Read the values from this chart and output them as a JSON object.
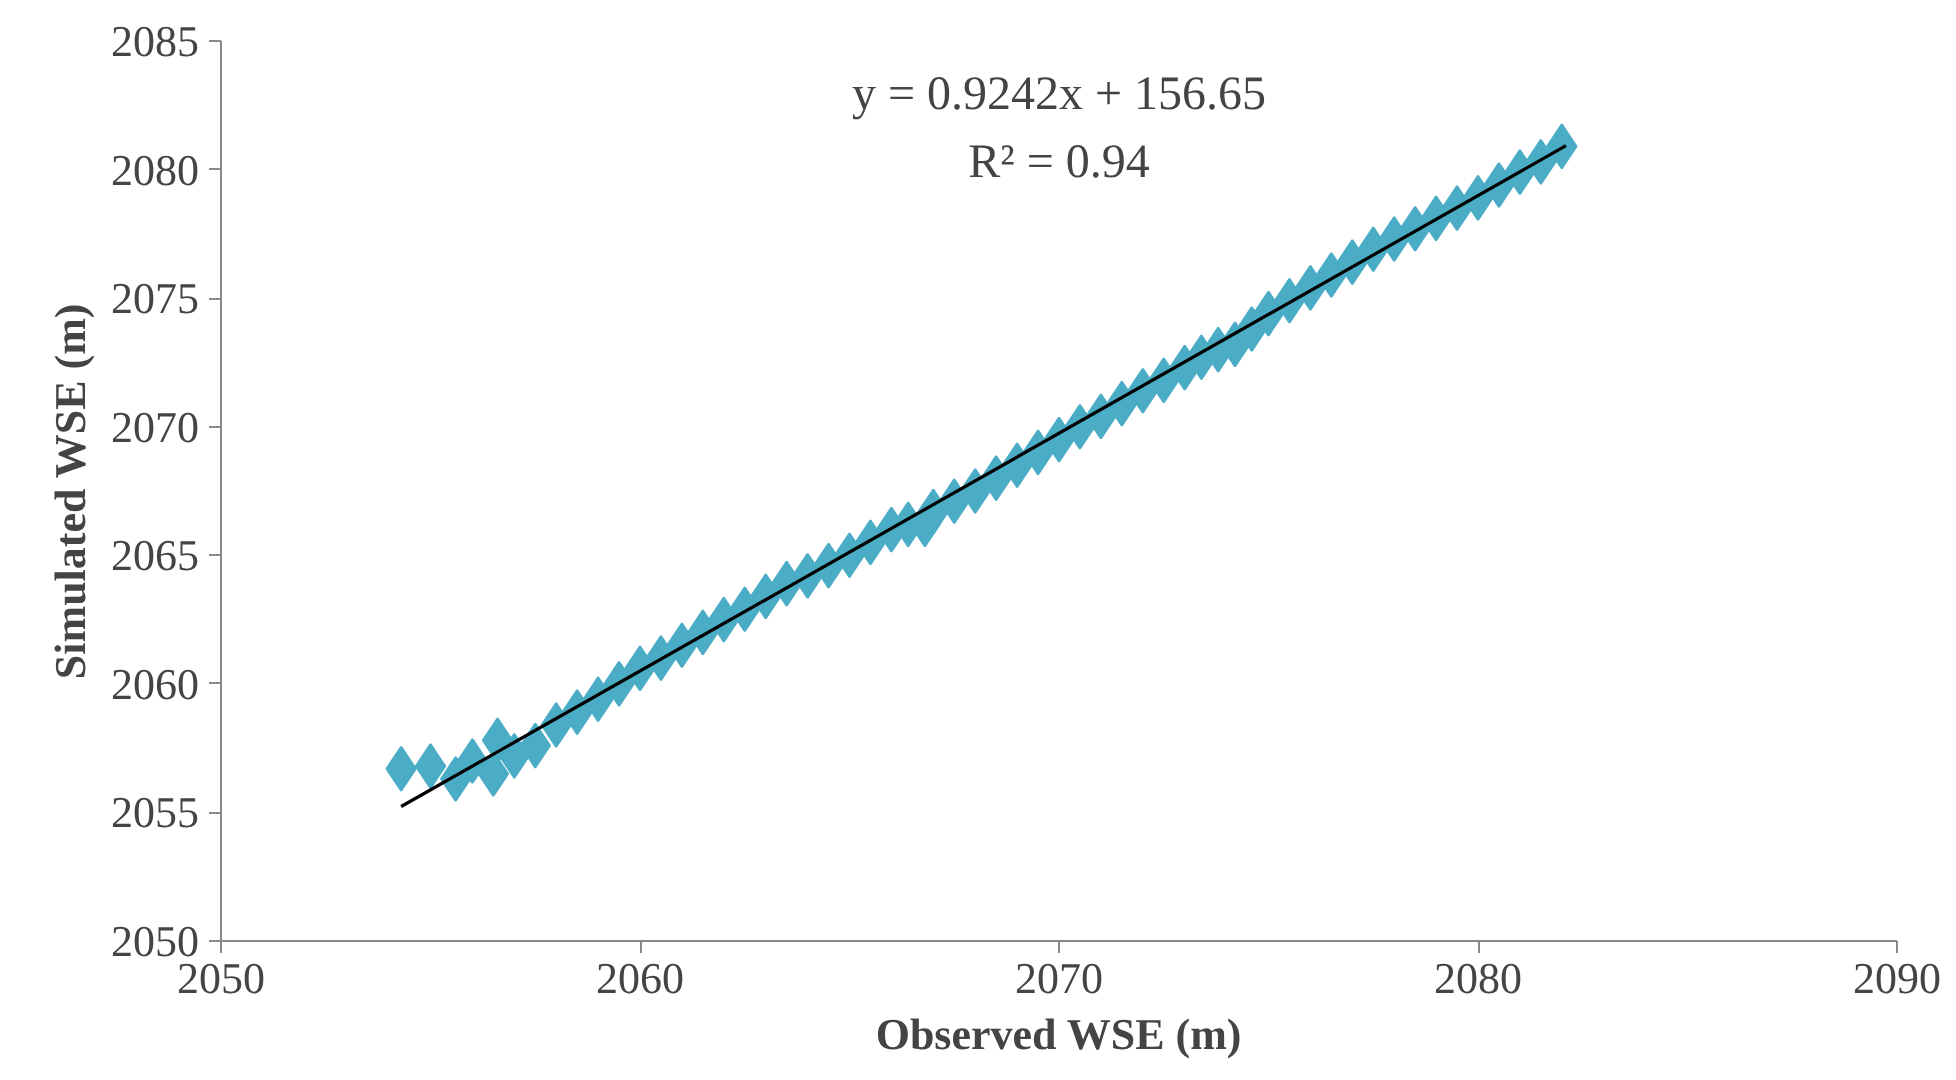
{
  "chart_data": {
    "type": "scatter",
    "xlabel": "Observed WSE (m)",
    "ylabel": "Simulated WSE (m)",
    "xlim": [
      2050,
      2090
    ],
    "ylim": [
      2050,
      2085
    ],
    "xticks": [
      2050,
      2060,
      2070,
      2080,
      2090
    ],
    "yticks": [
      2050,
      2055,
      2060,
      2065,
      2070,
      2075,
      2080,
      2085
    ],
    "grid": false,
    "marker": "diamond",
    "annotations": [
      "y = 0.9242x + 156.65",
      "R² = 0.94"
    ],
    "series": [
      {
        "color": "#4bacc6",
        "x": [
          2054.3,
          2055.0,
          2055.6,
          2056.0,
          2056.5,
          2056.6,
          2057.0,
          2057.5,
          2058,
          2058.5,
          2059,
          2059.5,
          2060,
          2060.5,
          2061,
          2061.5,
          2062,
          2062.5,
          2063,
          2063.5,
          2064,
          2064.5,
          2065,
          2065.5,
          2066,
          2066.4,
          2066.8,
          2067,
          2067.5,
          2068,
          2068.5,
          2069,
          2069.5,
          2070,
          2070.5,
          2071,
          2071.5,
          2072,
          2072.5,
          2073,
          2073.4,
          2073.8,
          2074.2,
          2074.6,
          2075,
          2075.5,
          2076,
          2076.5,
          2077,
          2077.5,
          2078,
          2078.5,
          2079,
          2079.5,
          2080,
          2080.5,
          2081,
          2081.5,
          2082
        ],
        "values": [
          2056.7,
          2056.8,
          2056.3,
          2057.0,
          2056.5,
          2057.8,
          2057.2,
          2057.6,
          2058.4,
          2058.9,
          2059.4,
          2060.0,
          2060.6,
          2061.0,
          2061.5,
          2062.0,
          2062.5,
          2062.9,
          2063.4,
          2063.9,
          2064.2,
          2064.6,
          2065.0,
          2065.5,
          2066.0,
          2066.2,
          2066.2,
          2066.7,
          2067.1,
          2067.5,
          2068.0,
          2068.5,
          2069.0,
          2069.5,
          2070.0,
          2070.4,
          2070.9,
          2071.4,
          2071.8,
          2072.3,
          2072.7,
          2073.0,
          2073.2,
          2073.8,
          2074.4,
          2074.9,
          2075.4,
          2075.9,
          2076.4,
          2076.9,
          2077.3,
          2077.7,
          2078.1,
          2078.5,
          2078.9,
          2079.4,
          2079.9,
          2080.3,
          2080.9
        ]
      },
      {
        "type": "line",
        "color": "#000000",
        "marker": "none",
        "x": [
          2054.3,
          2082.1
        ],
        "values": [
          2055.23,
          2080.93
        ]
      }
    ]
  }
}
